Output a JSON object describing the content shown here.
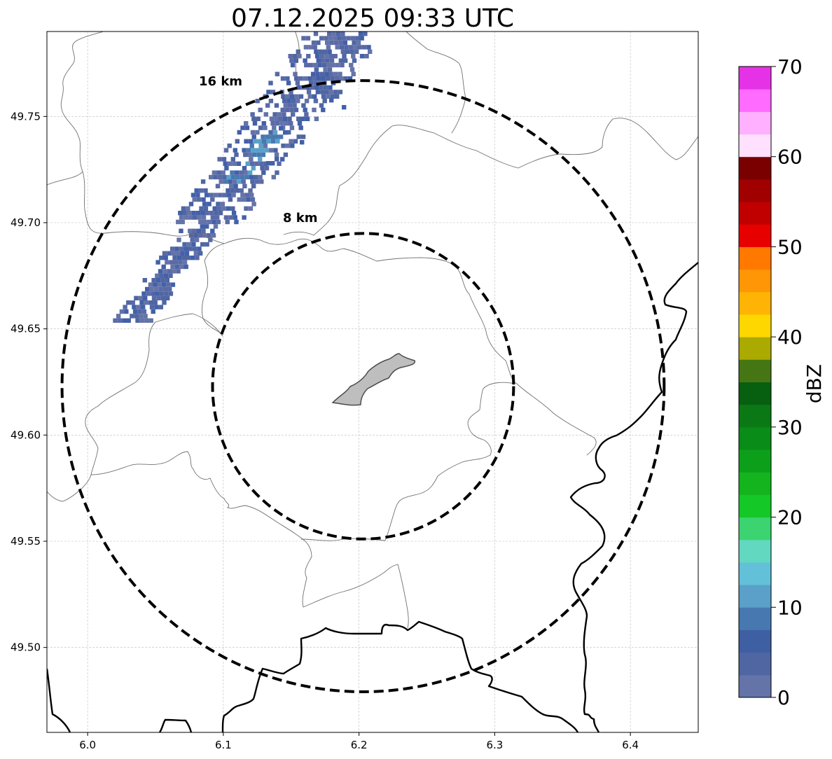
{
  "title": "07.12.2025 09:33 UTC",
  "map": {
    "lon_range": [
      5.97,
      6.45
    ],
    "lat_range": [
      49.46,
      49.79
    ],
    "x_ticks": [
      "6.0",
      "6.1",
      "6.2",
      "6.3",
      "6.4"
    ],
    "x_tick_values": [
      6.0,
      6.1,
      6.2,
      6.3,
      6.4
    ],
    "y_ticks": [
      "49.50",
      "49.55",
      "49.60",
      "49.65",
      "49.70",
      "49.75"
    ],
    "y_tick_values": [
      49.5,
      49.55,
      49.6,
      49.65,
      49.7,
      49.75
    ],
    "gridlines": true,
    "center": {
      "lon": 6.203,
      "lat": 49.623
    },
    "range_rings": [
      {
        "label": "8 km",
        "radius_km": 8
      },
      {
        "label": "16 km",
        "radius_km": 16
      }
    ]
  },
  "colorbar": {
    "label": "dBZ",
    "ticks": [
      "0",
      "10",
      "20",
      "30",
      "40",
      "50",
      "60",
      "70"
    ],
    "tick_values": [
      0,
      10,
      20,
      30,
      40,
      50,
      60,
      70
    ],
    "range": [
      0,
      70
    ],
    "step": 2.5,
    "colors": [
      "#6473a8",
      "#4f66a3",
      "#3f5fa3",
      "#4878b0",
      "#5aa0c8",
      "#62c0d8",
      "#62d8c0",
      "#3cd470",
      "#14c828",
      "#14b41e",
      "#0ca01a",
      "#0a8c18",
      "#0a7814",
      "#075f10",
      "#467614",
      "#aaaa00",
      "#ffd700",
      "#ffb405",
      "#ff9605",
      "#ff7800",
      "#e60000",
      "#c00000",
      "#a00000",
      "#7a0000",
      "#ffe0ff",
      "#ffb0ff",
      "#ff6aff",
      "#e632e6"
    ]
  },
  "chart_data": {
    "type": "heatmap",
    "title": "07.12.2025 09:33 UTC",
    "colorbar_label": "dBZ",
    "value_range": [
      0,
      70
    ],
    "echo_region": {
      "lon_range": [
        6.04,
        6.21
      ],
      "lat_range": [
        49.655,
        49.79
      ],
      "dominant_dbz": [
        2,
        8
      ],
      "max_dbz": 14
    }
  }
}
